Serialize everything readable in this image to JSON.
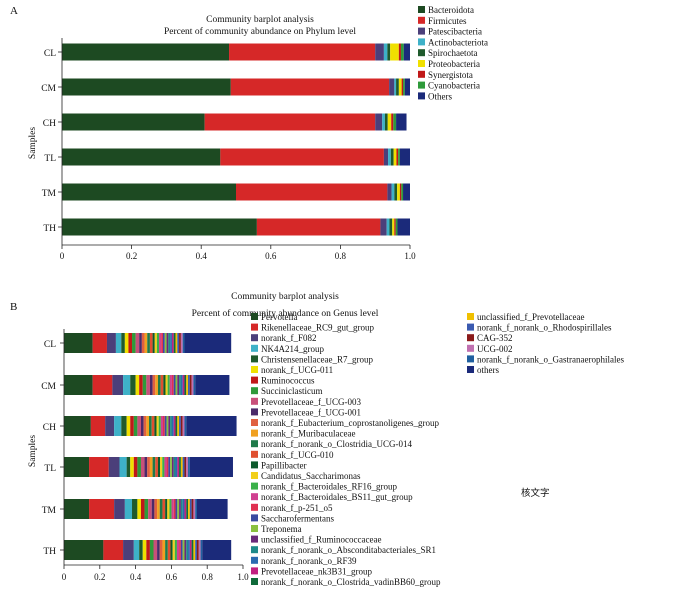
{
  "chart_data": [
    {
      "type": "bar",
      "stacked": true,
      "orientation": "horizontal",
      "panel_label": "A",
      "title": "Community barplot analysis",
      "subtitle": "Percent of community abundance on Phylum level",
      "ylabel": "Samples",
      "xlim": [
        0,
        1.0
      ],
      "x_ticks": [
        "0",
        "0.2",
        "0.4",
        "0.6",
        "0.8",
        "1.0"
      ],
      "categories": [
        "CL",
        "CM",
        "CH",
        "TL",
        "TM",
        "TH"
      ],
      "series": [
        {
          "name": "Bacteroidota",
          "color": "#1d4a22",
          "values": [
            0.48,
            0.485,
            0.41,
            0.455,
            0.5,
            0.56
          ]
        },
        {
          "name": "Firmicutes",
          "color": "#d62828",
          "values": [
            0.42,
            0.455,
            0.49,
            0.47,
            0.435,
            0.355
          ]
        },
        {
          "name": "Patescibacteria",
          "color": "#4b3f7a",
          "values": [
            0.025,
            0.015,
            0.02,
            0.012,
            0.012,
            0.018
          ]
        },
        {
          "name": "Actinobacteriota",
          "color": "#3eb1c8",
          "values": [
            0.01,
            0.005,
            0.008,
            0.008,
            0.008,
            0.008
          ]
        },
        {
          "name": "Spirochaetota",
          "color": "#1f5a2c",
          "values": [
            0.008,
            0.008,
            0.008,
            0.008,
            0.008,
            0.008
          ]
        },
        {
          "name": "Proteobacteria",
          "color": "#f0e000",
          "values": [
            0.025,
            0.008,
            0.01,
            0.008,
            0.008,
            0.006
          ]
        },
        {
          "name": "Synergistota",
          "color": "#c01818",
          "values": [
            0.006,
            0.004,
            0.006,
            0.005,
            0.004,
            0.004
          ]
        },
        {
          "name": "Cyanobacteria",
          "color": "#2e9a3a",
          "values": [
            0.008,
            0.005,
            0.008,
            0.005,
            0.005,
            0.005
          ]
        },
        {
          "name": "Others",
          "color": "#1b2a7a",
          "values": [
            0.018,
            0.015,
            0.03,
            0.029,
            0.02,
            0.036
          ]
        }
      ]
    },
    {
      "type": "bar",
      "stacked": true,
      "orientation": "horizontal",
      "panel_label": "B",
      "title": "Community barplot analysis",
      "subtitle": "Percent of community abundance on Genus level",
      "ylabel": "Samples",
      "xlim": [
        0,
        1.0
      ],
      "x_ticks": [
        "0",
        "0.2",
        "0.4",
        "0.6",
        "0.8",
        "1.0"
      ],
      "categories": [
        "CL",
        "CM",
        "CH",
        "TL",
        "TM",
        "TH"
      ],
      "series": [
        {
          "name": "Pervotella",
          "color": "#1d4a22",
          "values": [
            0.16,
            0.16,
            0.15,
            0.14,
            0.14,
            0.22
          ]
        },
        {
          "name": "Rikenellaceae_RC9_gut_group",
          "color": "#d62828",
          "values": [
            0.08,
            0.11,
            0.08,
            0.11,
            0.14,
            0.11
          ]
        },
        {
          "name": "norank_f_F082",
          "color": "#4b3f7a",
          "values": [
            0.05,
            0.06,
            0.05,
            0.06,
            0.06,
            0.06
          ]
        },
        {
          "name": "NK4A214_group",
          "color": "#3eb1c8",
          "values": [
            0.03,
            0.04,
            0.04,
            0.04,
            0.04,
            0.03
          ]
        },
        {
          "name": "Christensenellaceae_R7_group",
          "color": "#1f5a2c",
          "values": [
            0.02,
            0.03,
            0.03,
            0.02,
            0.03,
            0.02
          ]
        },
        {
          "name": "norank_f_UCG-011",
          "color": "#f0e000",
          "values": [
            0.02,
            0.02,
            0.02,
            0.02,
            0.02,
            0.02
          ]
        },
        {
          "name": "Ruminococcus",
          "color": "#c01818",
          "values": [
            0.02,
            0.02,
            0.02,
            0.02,
            0.02,
            0.02
          ]
        },
        {
          "name": "Succiniclasticum",
          "color": "#2e9a3a",
          "values": [
            0.02,
            0.02,
            0.02,
            0.02,
            0.02,
            0.02
          ]
        },
        {
          "name": "Prevotellaceae_f_UCG-003",
          "color": "#c8507a",
          "values": [
            0.02,
            0.02,
            0.02,
            0.02,
            0.02,
            0.02
          ]
        },
        {
          "name": "Prevotellaceae_f_UCG-001",
          "color": "#4a2a6a",
          "values": [
            0.015,
            0.015,
            0.015,
            0.015,
            0.015,
            0.015
          ]
        },
        {
          "name": "norank_f_Eubacterium_coprostanoligenes_group",
          "color": "#e06040",
          "values": [
            0.015,
            0.015,
            0.015,
            0.015,
            0.015,
            0.015
          ]
        },
        {
          "name": "norank_f_Muribaculaceae",
          "color": "#f0a020",
          "values": [
            0.015,
            0.015,
            0.015,
            0.015,
            0.015,
            0.015
          ]
        },
        {
          "name": "norank_f_norank_o_Clostridia_UCG-014",
          "color": "#1f7a4a",
          "values": [
            0.015,
            0.015,
            0.015,
            0.015,
            0.015,
            0.015
          ]
        },
        {
          "name": "norank_f_UCG-010",
          "color": "#e05030",
          "values": [
            0.015,
            0.015,
            0.015,
            0.015,
            0.015,
            0.015
          ]
        },
        {
          "name": "Papillibacter",
          "color": "#0d5a2c",
          "values": [
            0.012,
            0.012,
            0.012,
            0.012,
            0.012,
            0.012
          ]
        },
        {
          "name": "Candidatus_Saccharimonas",
          "color": "#f2cf1a",
          "values": [
            0.012,
            0.012,
            0.012,
            0.012,
            0.012,
            0.012
          ]
        },
        {
          "name": "norank_f_Bacteroidales_RF16_group",
          "color": "#3ab04a",
          "values": [
            0.012,
            0.012,
            0.012,
            0.012,
            0.012,
            0.012
          ]
        },
        {
          "name": "norank_f_Bacteroidales_BS11_gut_group",
          "color": "#d04090",
          "values": [
            0.012,
            0.012,
            0.012,
            0.012,
            0.012,
            0.012
          ]
        },
        {
          "name": "norank_f_p-251_o5",
          "color": "#e03050",
          "values": [
            0.01,
            0.01,
            0.01,
            0.01,
            0.01,
            0.01
          ]
        },
        {
          "name": "Saccharofermentans",
          "color": "#3a4aa0",
          "values": [
            0.01,
            0.01,
            0.01,
            0.01,
            0.01,
            0.01
          ]
        },
        {
          "name": "Treponema",
          "color": "#8ac040",
          "values": [
            0.01,
            0.01,
            0.01,
            0.01,
            0.01,
            0.01
          ]
        },
        {
          "name": "unclassified_f_Ruminococcaceae",
          "color": "#6a2a7a",
          "values": [
            0.01,
            0.01,
            0.01,
            0.01,
            0.01,
            0.01
          ]
        },
        {
          "name": "norank_f_norank_o_Absconditabacteriales_SR1",
          "color": "#1e8a8a",
          "values": [
            0.01,
            0.01,
            0.01,
            0.01,
            0.01,
            0.01
          ]
        },
        {
          "name": "norank_f_norank_o_RF39",
          "color": "#2a6ab0",
          "values": [
            0.01,
            0.01,
            0.01,
            0.01,
            0.01,
            0.01
          ]
        },
        {
          "name": "Prevotellaceae_nk3B31_group",
          "color": "#c02080",
          "values": [
            0.01,
            0.01,
            0.01,
            0.01,
            0.01,
            0.01
          ]
        },
        {
          "name": "norank_f_norank_o_Clostrida_vadinBB60_group",
          "color": "#0f6a3a",
          "values": [
            0.01,
            0.01,
            0.01,
            0.01,
            0.01,
            0.01
          ]
        },
        {
          "name": "unclassified_f_Prevotellaceae",
          "color": "#f0c000",
          "values": [
            0.01,
            0.01,
            0.01,
            0.01,
            0.01,
            0.01
          ]
        },
        {
          "name": "norank_f_norank_o_Rhodospirillales",
          "color": "#3a5ab0",
          "values": [
            0.01,
            0.01,
            0.01,
            0.01,
            0.01,
            0.01
          ]
        },
        {
          "name": "CAG-352",
          "color": "#8a1a1a",
          "values": [
            0.01,
            0.01,
            0.01,
            0.01,
            0.01,
            0.01
          ]
        },
        {
          "name": "UCG-002",
          "color": "#c070b0",
          "values": [
            0.01,
            0.01,
            0.01,
            0.01,
            0.01,
            0.01
          ]
        },
        {
          "name": "norank_f_norank_o_Gastranaerophilales",
          "color": "#2060a0",
          "values": [
            0.01,
            0.01,
            0.01,
            0.01,
            0.01,
            0.01
          ]
        },
        {
          "name": "others",
          "color": "#1b2a7a",
          "values": [
            0.261,
            0.191,
            0.281,
            0.241,
            0.171,
            0.161
          ]
        }
      ]
    }
  ],
  "annotation": "核文字"
}
